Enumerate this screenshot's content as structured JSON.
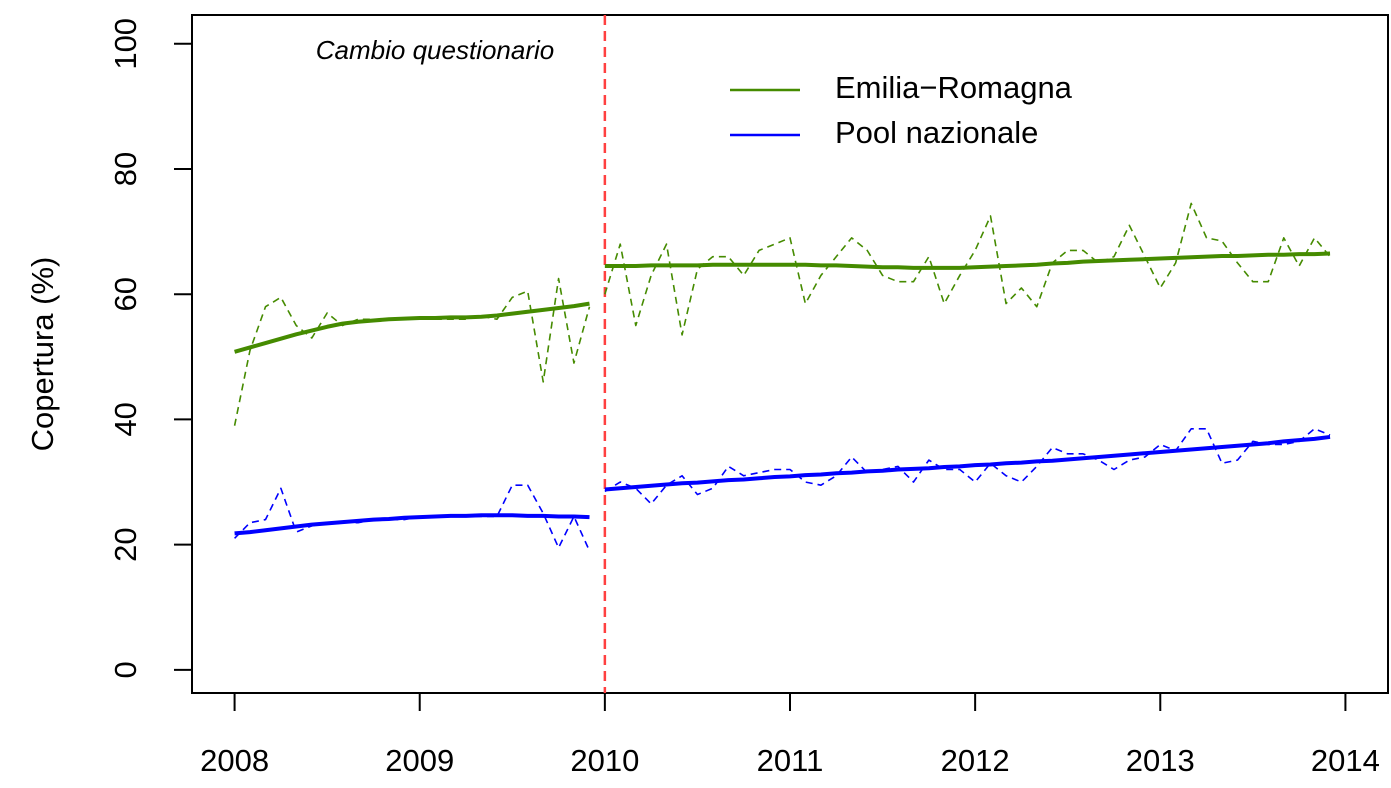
{
  "chart_data": {
    "type": "line",
    "y_label": "Copertura (%)",
    "annotation": "Cambio questionario",
    "vline": 2010,
    "vline_color": "#ff4040",
    "x": [
      2008,
      2008.083,
      2008.167,
      2008.25,
      2008.333,
      2008.417,
      2008.5,
      2008.583,
      2008.667,
      2008.75,
      2008.833,
      2008.917,
      2009,
      2009.083,
      2009.167,
      2009.25,
      2009.333,
      2009.417,
      2009.5,
      2009.583,
      2009.667,
      2009.75,
      2009.833,
      2009.917,
      2010,
      2010.083,
      2010.167,
      2010.25,
      2010.333,
      2010.417,
      2010.5,
      2010.583,
      2010.667,
      2010.75,
      2010.833,
      2010.917,
      2011,
      2011.083,
      2011.167,
      2011.25,
      2011.333,
      2011.417,
      2011.5,
      2011.583,
      2011.667,
      2011.75,
      2011.833,
      2011.917,
      2012,
      2012.083,
      2012.167,
      2012.25,
      2012.333,
      2012.417,
      2012.5,
      2012.583,
      2012.667,
      2012.75,
      2012.833,
      2012.917,
      2013,
      2013.083,
      2013.167,
      2013.25,
      2013.333,
      2013.417,
      2013.5,
      2013.583,
      2013.667,
      2013.75,
      2013.833,
      2013.917
    ],
    "series": [
      {
        "name": "Emilia−Romagna",
        "color": "#458b00",
        "values": [
          50.8,
          51.5,
          52.2,
          52.9,
          53.6,
          54.2,
          54.8,
          55.3,
          55.6,
          55.8,
          56.0,
          56.1,
          56.2,
          56.2,
          56.3,
          56.3,
          56.4,
          56.6,
          56.9,
          57.2,
          57.5,
          57.8,
          58.1,
          58.5,
          64.5,
          64.5,
          64.5,
          64.6,
          64.6,
          64.6,
          64.6,
          64.7,
          64.7,
          64.7,
          64.7,
          64.7,
          64.7,
          64.7,
          64.6,
          64.6,
          64.5,
          64.4,
          64.3,
          64.3,
          64.2,
          64.2,
          64.2,
          64.2,
          64.3,
          64.4,
          64.5,
          64.6,
          64.7,
          64.9,
          65.0,
          65.2,
          65.3,
          65.4,
          65.5,
          65.6,
          65.7,
          65.8,
          65.9,
          66.0,
          66.1,
          66.1,
          66.2,
          66.3,
          66.3,
          66.4,
          66.4,
          66.5
        ],
        "raw": [
          39,
          51,
          58,
          59.5,
          55,
          53,
          57,
          55,
          56,
          56,
          56,
          56,
          56,
          56,
          56,
          56,
          56.5,
          56,
          59.5,
          60.5,
          46,
          62.5,
          49,
          58,
          60,
          68,
          55,
          63,
          68,
          53.5,
          64,
          66,
          66,
          63,
          67,
          68,
          69,
          58.5,
          63,
          66,
          69,
          67,
          63,
          62,
          62,
          66,
          58.5,
          63,
          67,
          72.5,
          58.5,
          61,
          58,
          65,
          67,
          67,
          65,
          66,
          71,
          66,
          61,
          65,
          74.5,
          69,
          68.5,
          65,
          62,
          62,
          69,
          64.5,
          69,
          66
        ]
      },
      {
        "name": "Pool nazionale",
        "color": "#0000ff",
        "values": [
          21.8,
          22.0,
          22.3,
          22.6,
          22.9,
          23.2,
          23.4,
          23.6,
          23.8,
          24.0,
          24.1,
          24.3,
          24.4,
          24.5,
          24.6,
          24.6,
          24.7,
          24.7,
          24.7,
          24.6,
          24.6,
          24.5,
          24.5,
          24.4,
          28.8,
          29.0,
          29.2,
          29.4,
          29.6,
          29.8,
          29.9,
          30.1,
          30.3,
          30.4,
          30.6,
          30.8,
          30.9,
          31.1,
          31.2,
          31.4,
          31.5,
          31.7,
          31.8,
          32.0,
          32.1,
          32.2,
          32.4,
          32.5,
          32.7,
          32.8,
          33.0,
          33.1,
          33.3,
          33.4,
          33.6,
          33.8,
          34.0,
          34.2,
          34.4,
          34.6,
          34.8,
          35.0,
          35.2,
          35.4,
          35.6,
          35.8,
          36.0,
          36.2,
          36.5,
          36.7,
          36.9,
          37.2
        ],
        "raw": [
          21,
          23.5,
          24,
          29,
          22,
          23,
          23.5,
          23.5,
          23.5,
          24,
          24,
          24,
          24.5,
          24.5,
          24.5,
          24.5,
          24.5,
          24.5,
          29.5,
          29.5,
          25,
          19.5,
          24.5,
          19,
          28.5,
          30,
          29,
          26.5,
          29.5,
          31,
          28,
          29,
          32.5,
          31,
          31.5,
          32,
          32,
          30,
          29.5,
          31,
          34,
          31.5,
          32,
          32.5,
          30,
          33.5,
          32,
          32,
          30,
          33,
          31,
          30,
          32.5,
          35.5,
          34.5,
          34.5,
          33.5,
          32,
          33.5,
          34,
          36,
          35,
          38.5,
          38.5,
          33,
          33.5,
          36.5,
          36,
          36,
          36.5,
          38.5,
          37.5
        ]
      }
    ],
    "xlim": [
      2007.77,
      2014.23
    ],
    "xticks": [
      2008,
      2009,
      2010,
      2011,
      2012,
      2013,
      2014
    ],
    "ylim": [
      -3.7,
      104.6
    ],
    "yticks": [
      0,
      20,
      40,
      60,
      80,
      100
    ]
  }
}
